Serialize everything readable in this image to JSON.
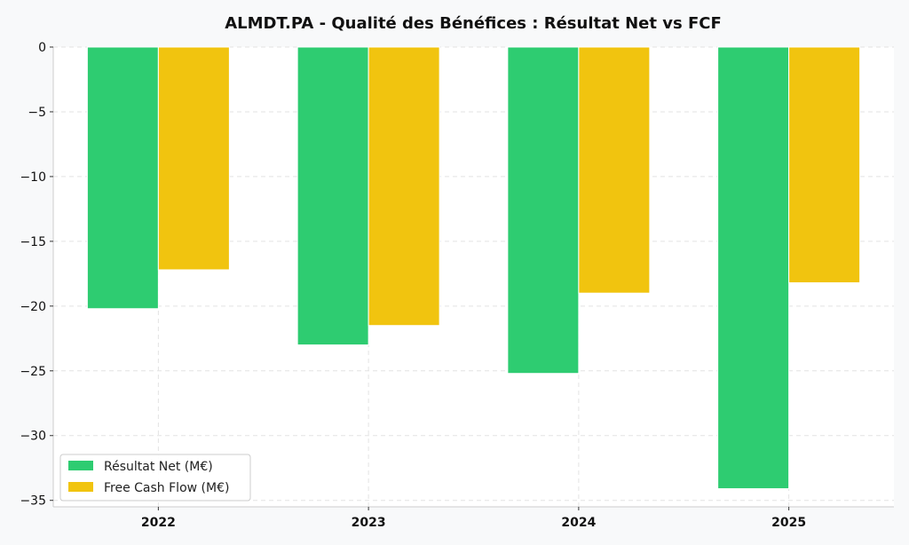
{
  "chart_data": {
    "type": "bar",
    "title": "ALMDT.PA - Qualité des Bénéfices : Résultat Net vs FCF",
    "xlabel": "",
    "ylabel": "",
    "categories": [
      "2022",
      "2023",
      "2024",
      "2025"
    ],
    "series": [
      {
        "name": "Résultat Net (M€)",
        "values": [
          -20.2,
          -23.0,
          -25.2,
          -34.1
        ],
        "color": "#2ecc71"
      },
      {
        "name": "Free Cash Flow (M€)",
        "values": [
          -17.2,
          -21.5,
          -19.0,
          -18.2
        ],
        "color": "#f1c40f"
      }
    ],
    "ylim": [
      -35.5,
      0
    ],
    "yticks": [
      0,
      -5,
      -10,
      -15,
      -20,
      -25,
      -30,
      -35
    ],
    "ytick_labels": [
      "0",
      "−5",
      "−10",
      "−15",
      "−20",
      "−25",
      "−30",
      "−35"
    ],
    "grid": true,
    "legend_position": "bottom-left",
    "plot_background": "#ffffff",
    "figure_background": "#f8f9fa"
  }
}
